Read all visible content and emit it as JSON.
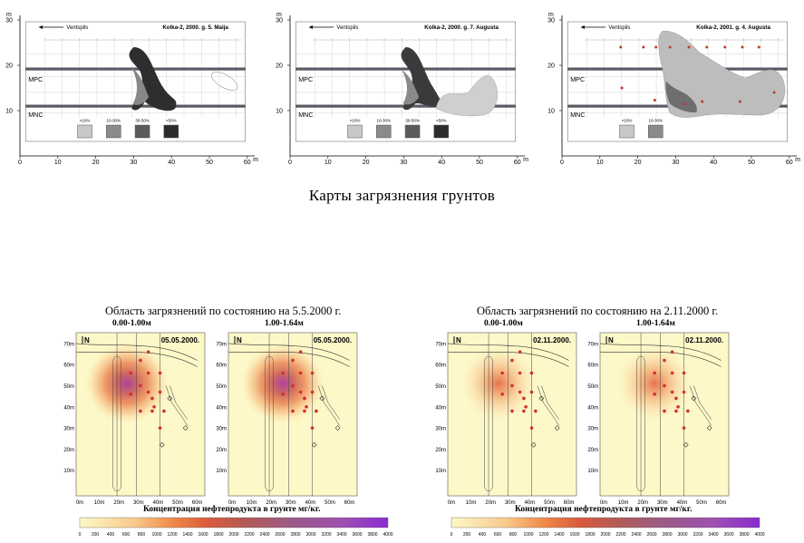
{
  "top_maps": [
    {
      "title": "Kolka-2, 2000. g. 5. Maija",
      "arrow_label": "Ventspils",
      "y_axis_unit": "m",
      "x_axis_unit": "m",
      "x_ticks": [
        "0",
        "10",
        "20",
        "30",
        "40",
        "50",
        "60"
      ],
      "y_ticks": [
        "10",
        "20",
        "30"
      ],
      "row_labels": [
        "MPC",
        "MNC"
      ],
      "legend": [
        "<10%",
        "10-30%",
        "30-50%",
        ">50%"
      ]
    },
    {
      "title": "Kolka-2, 2000. g. 7. Augusta",
      "arrow_label": "Ventspils",
      "y_axis_unit": "m",
      "x_axis_unit": "m",
      "x_ticks": [
        "0",
        "10",
        "20",
        "30",
        "40",
        "50",
        "60"
      ],
      "y_ticks": [
        "10",
        "20",
        "30"
      ],
      "row_labels": [
        "MPC",
        "MNC"
      ],
      "legend": [
        "<10%",
        "10-30%",
        "30-50%",
        ">50%"
      ]
    },
    {
      "title": "Kolka-2, 2001. g. 4. Augusta",
      "arrow_label": "Ventspils",
      "y_axis_unit": "m",
      "x_axis_unit": "m",
      "x_ticks": [
        "0",
        "10",
        "20",
        "30",
        "40",
        "50",
        "60"
      ],
      "y_ticks": [
        "10",
        "20",
        "30"
      ],
      "row_labels": [
        "MPC",
        "MNC"
      ],
      "legend": [
        "<10%",
        "10-30%"
      ]
    }
  ],
  "section_title": "Карты загрязнения грунтов",
  "bottom_groups": [
    {
      "title": "Область загрязнений по состоянию на 5.5.2000 г.",
      "panels": [
        {
          "depth": "0.00-1.00м",
          "date": "05.05.2000."
        },
        {
          "depth": "1.00-1.64м",
          "date": "05.05.2000."
        }
      ],
      "colorbar_label": "Концентрация нефтепродукта в грунте мг/кг.",
      "colorbar_ticks": [
        "0",
        "200",
        "400",
        "600",
        "800",
        "1000",
        "1200",
        "1400",
        "1600",
        "1800",
        "2000",
        "2200",
        "2400",
        "2600",
        "2800",
        "3000",
        "3200",
        "3400",
        "3600",
        "3800",
        "4000"
      ]
    },
    {
      "title": "Область загрязнений по состоянию на 2.11.2000 г.",
      "panels": [
        {
          "depth": "0.00-1.00м",
          "date": "02.11.2000."
        },
        {
          "depth": "1.00-1.64м",
          "date": "02.11.2000."
        }
      ],
      "colorbar_label": "Концентрация нефтепродукта в грунте мг/кг.",
      "colorbar_ticks": [
        "0",
        "200",
        "400",
        "600",
        "800",
        "1000",
        "1200",
        "1400",
        "1600",
        "1800",
        "2000",
        "2200",
        "2400",
        "2600",
        "2800",
        "3000",
        "3200",
        "3400",
        "3600",
        "3800",
        "4000"
      ]
    }
  ],
  "panel_y_ticks": [
    "70m",
    "60m",
    "50m",
    "40m",
    "30m",
    "20m",
    "10m"
  ],
  "panel_x_ticks": [
    "0m",
    "10m",
    "20m",
    "30m",
    "40m",
    "50m",
    "60m"
  ],
  "north_label": "N",
  "colors": {
    "panel_bg": "#fdf8c8",
    "heat_core": "#b0509a",
    "heat_mid": "#f08a48",
    "band": "#5a5a66"
  }
}
